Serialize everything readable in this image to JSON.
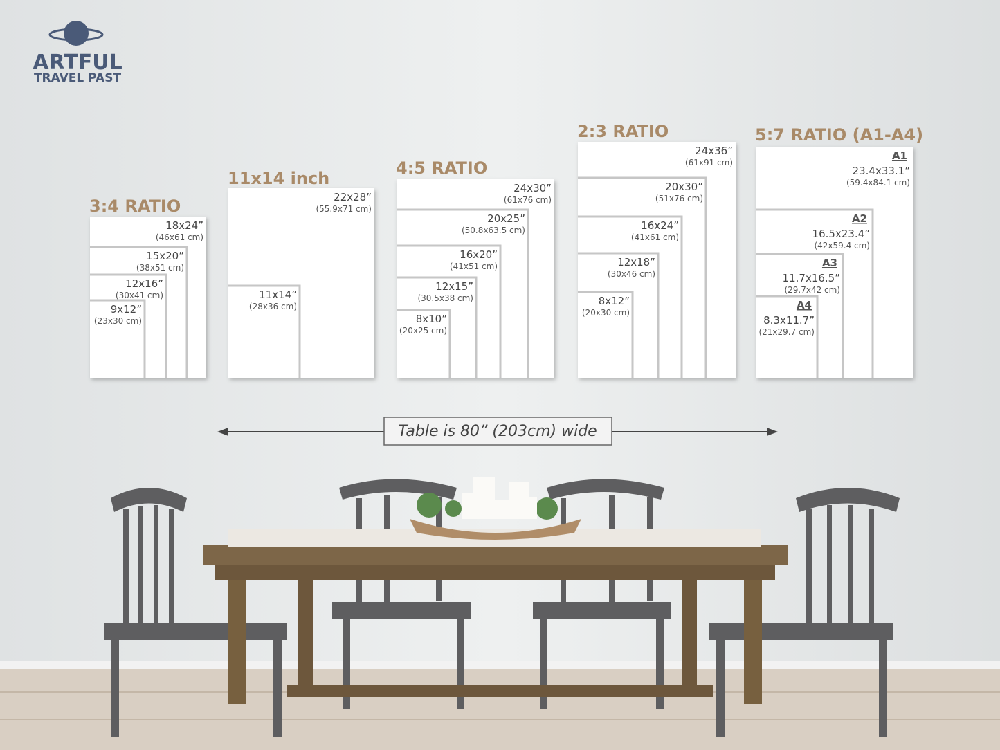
{
  "logo": {
    "line1": "ARTFUL",
    "line2": "TRAVEL PAST"
  },
  "groups": [
    {
      "title": "3:4 RATIO",
      "sizes": [
        {
          "inch": "18x24”",
          "cm": "(46x61 cm)"
        },
        {
          "inch": "15x20”",
          "cm": "(38x51 cm)"
        },
        {
          "inch": "12x16”",
          "cm": "(30x41 cm)"
        },
        {
          "inch": "9x12”",
          "cm": "(23x30 cm)"
        }
      ]
    },
    {
      "title": "11x14 inch",
      "sizes": [
        {
          "inch": "22x28”",
          "cm": "(55.9x71 cm)"
        },
        {
          "inch": "11x14”",
          "cm": "(28x36 cm)"
        }
      ]
    },
    {
      "title": "4:5 RATIO",
      "sizes": [
        {
          "inch": "24x30”",
          "cm": "(61x76 cm)"
        },
        {
          "inch": "20x25”",
          "cm": "(50.8x63.5 cm)"
        },
        {
          "inch": "16x20”",
          "cm": "(41x51 cm)"
        },
        {
          "inch": "12x15”",
          "cm": "(30.5x38 cm)"
        },
        {
          "inch": "8x10”",
          "cm": "(20x25 cm)"
        }
      ]
    },
    {
      "title": "2:3 RATIO",
      "sizes": [
        {
          "inch": "24x36”",
          "cm": "(61x91 cm)"
        },
        {
          "inch": "20x30”",
          "cm": "(51x76 cm)"
        },
        {
          "inch": "16x24”",
          "cm": "(41x61 cm)"
        },
        {
          "inch": "12x18”",
          "cm": "(30x46 cm)"
        },
        {
          "inch": "8x12”",
          "cm": "(20x30 cm)"
        }
      ]
    },
    {
      "title": "5:7 RATIO (A1-A4)",
      "sizes": [
        {
          "label": "A1",
          "inch": "23.4x33.1”",
          "cm": "(59.4x84.1 cm)"
        },
        {
          "label": "A2",
          "inch": "16.5x23.4”",
          "cm": "(42x59.4 cm)"
        },
        {
          "label": "A3",
          "inch": "11.7x16.5”",
          "cm": "(29.7x42 cm)"
        },
        {
          "label": "A4",
          "inch": "8.3x11.7”",
          "cm": "(21x29.7 cm)"
        }
      ]
    }
  ],
  "caption": "Table is 80” (203cm) wide"
}
